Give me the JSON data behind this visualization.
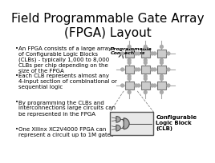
{
  "title": "Field Programmable Gate Array\n(FPGA) Layout",
  "title_fontsize": 11,
  "bg_color": "#ffffff",
  "bullet_points": [
    "An FPGA consists of a large array\nof Configurable Logic Blocks\n(CLBs) - typically 1,000 to 8,000\nCLBs per chip depending on the\nsize of the FPGA",
    "Each CLB represents almost any\n4-input section of combinational or\nsequential logic",
    "By programming the CLBs and\ninterconnections large circuits can\nbe represented in the FPGA",
    "One Xilinx XC2V4000 FPGA can\nrepresent a circuit up to 1M gates"
  ],
  "bullet_fontsize": 5.0,
  "diagram_label_connections": "Programmable\nConnections",
  "diagram_label_clb": "Configurable\nLogic Block\n(CLB)",
  "grid_color": "#aaaaaa",
  "clb_color": "#cccccc",
  "clb_border": "#777777",
  "wire_color": "#888888",
  "box_bg": "#dddddd",
  "text_color": "#000000"
}
